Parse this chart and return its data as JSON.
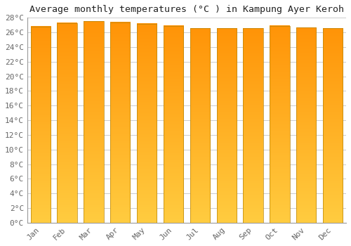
{
  "title": "Average monthly temperatures (°C ) in Kampung Ayer Keroh",
  "months": [
    "Jan",
    "Feb",
    "Mar",
    "Apr",
    "May",
    "Jun",
    "Jul",
    "Aug",
    "Sep",
    "Oct",
    "Nov",
    "Dec"
  ],
  "temperatures": [
    26.8,
    27.3,
    27.5,
    27.4,
    27.2,
    26.9,
    26.6,
    26.6,
    26.6,
    26.9,
    26.7,
    26.6
  ],
  "bar_color": "#FFA500",
  "bar_edge_color": "#B8860B",
  "background_color": "#FFFFFF",
  "plot_bg_color": "#FFFFFF",
  "grid_color": "#CCCCCC",
  "ylim": [
    0,
    28
  ],
  "ytick_max": 28,
  "ytick_step": 2,
  "title_fontsize": 9.5,
  "tick_fontsize": 8,
  "font_family": "monospace",
  "tick_color": "#666666",
  "title_color": "#222222",
  "bar_width": 0.75
}
